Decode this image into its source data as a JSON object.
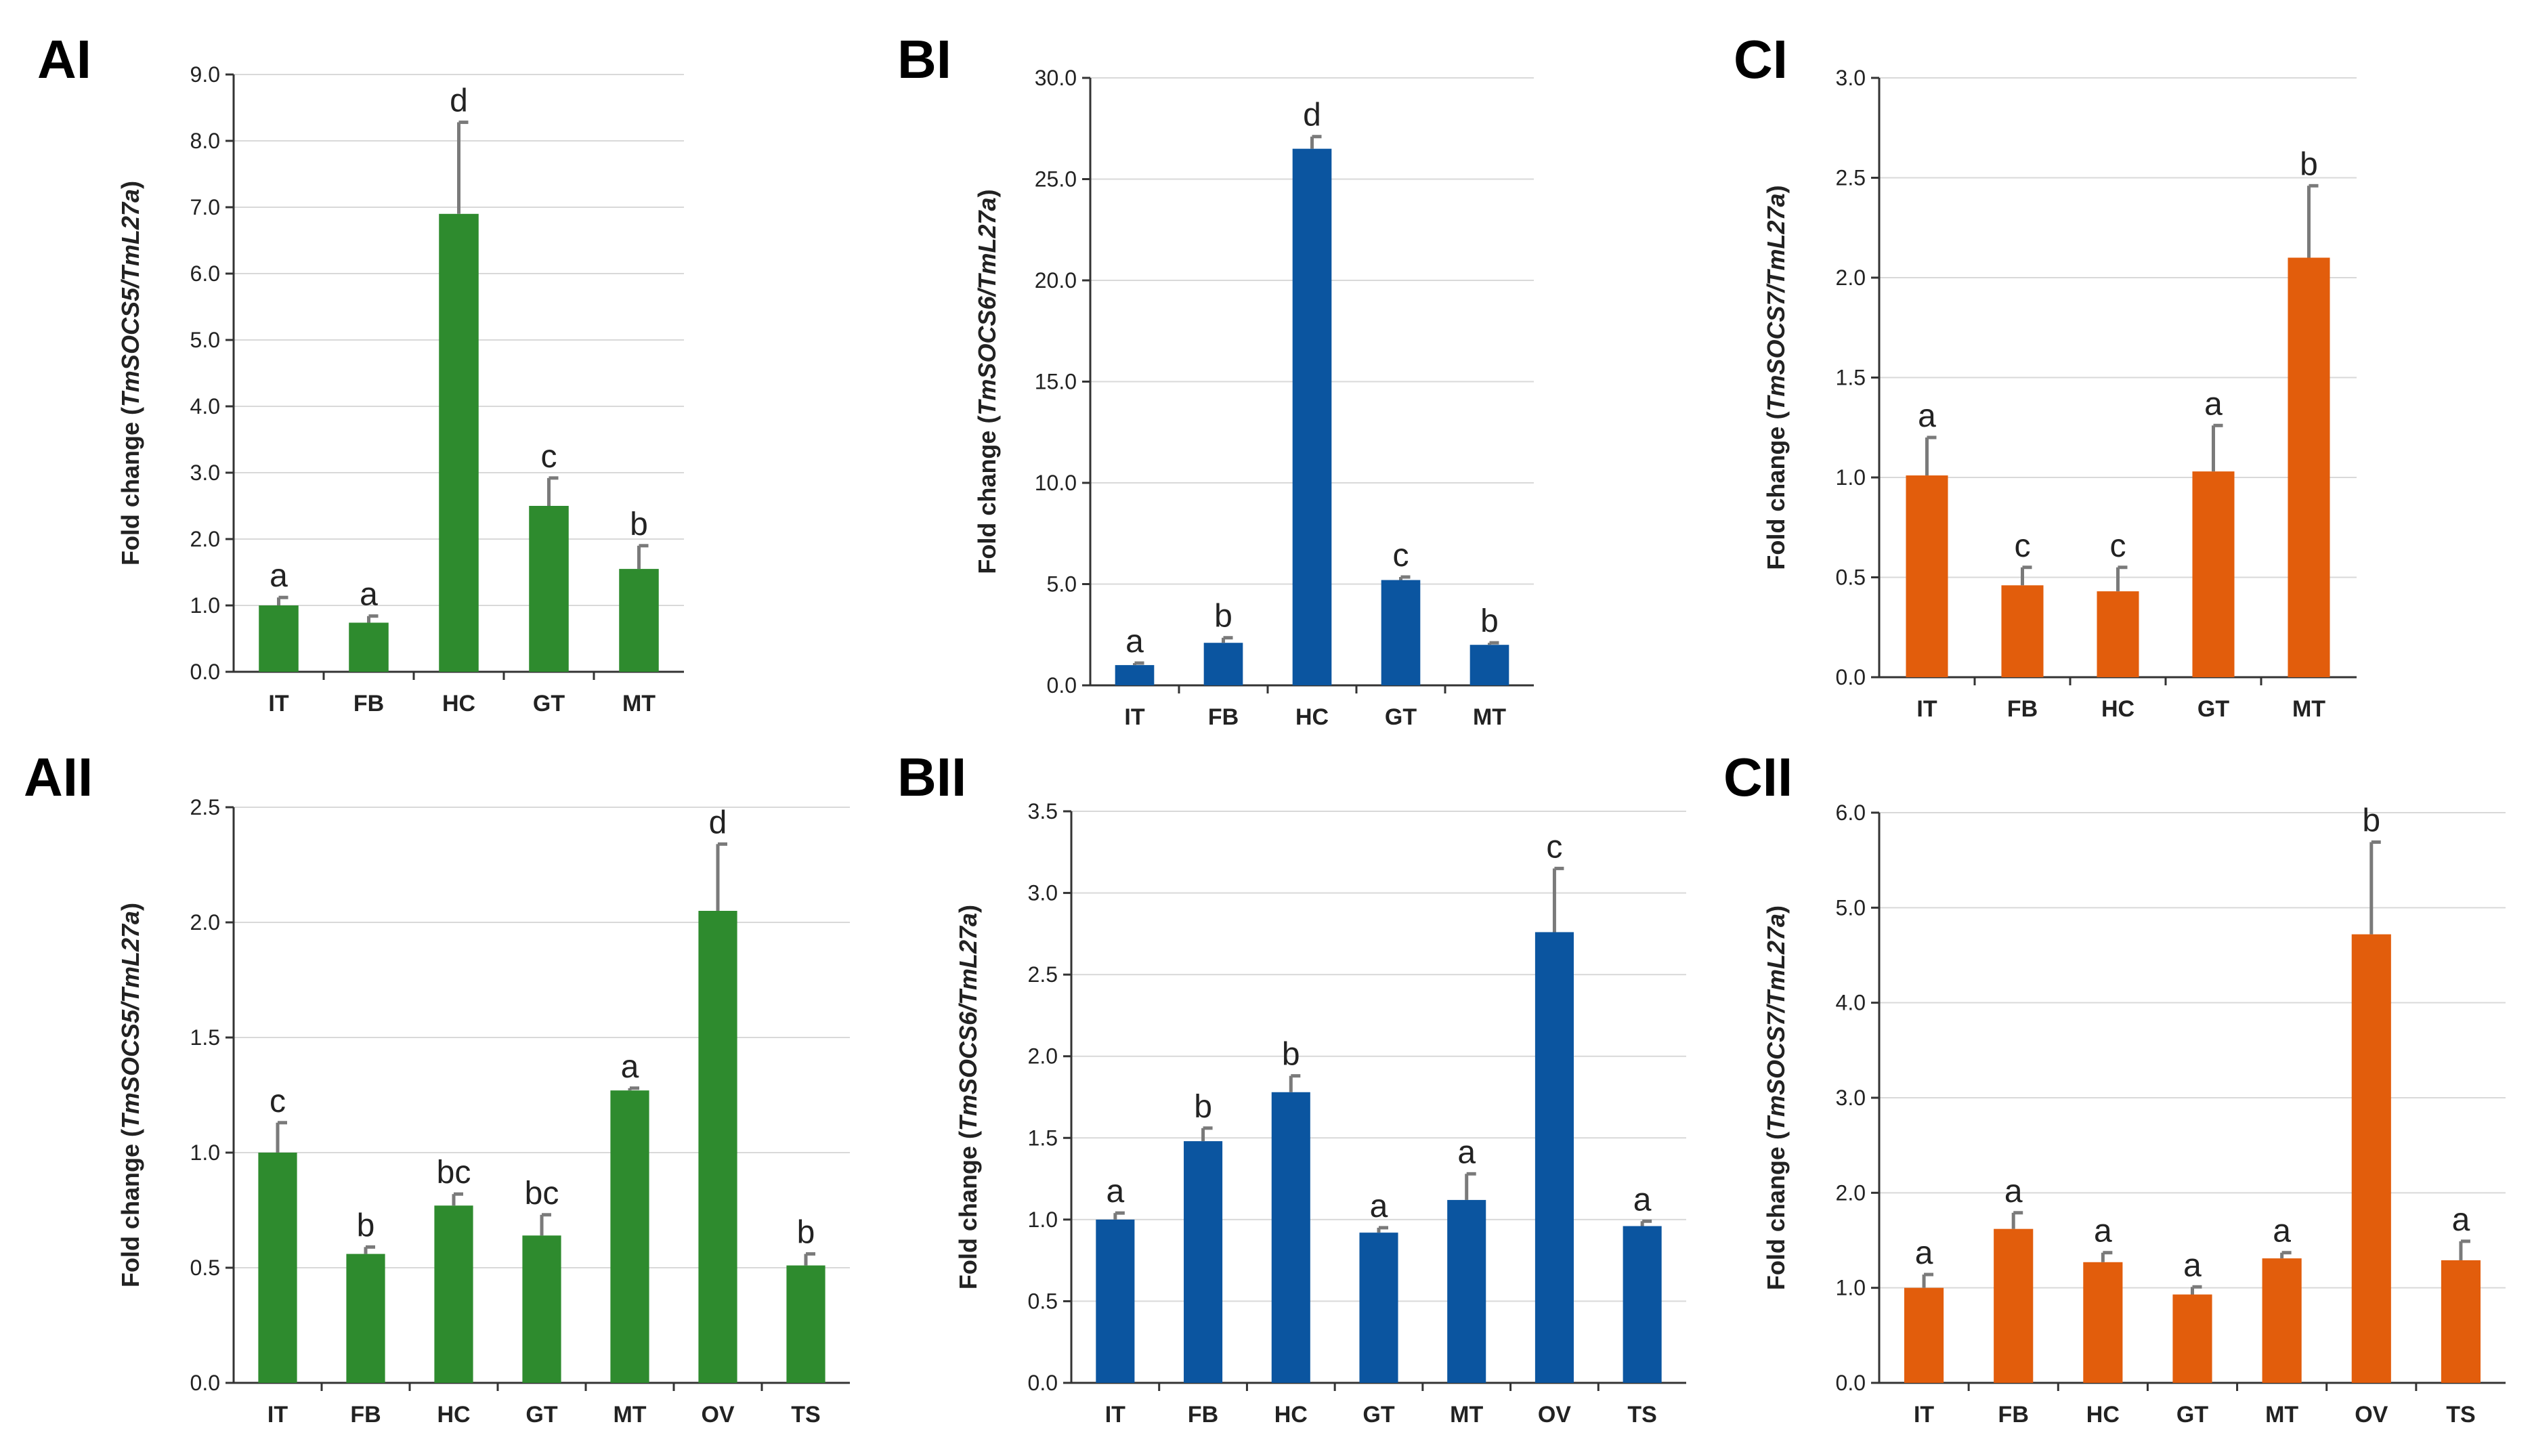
{
  "chart_data": [
    {
      "panel": "AI",
      "type": "bar",
      "color": "#2e8b2e",
      "ylabel_prefix": "Fold change (",
      "ylabel_gene": "TmSOCS5/TmL27a",
      "ylabel_suffix": ")",
      "ylim": [
        0,
        9
      ],
      "yticks": [
        "0.0",
        "1.0",
        "2.0",
        "3.0",
        "4.0",
        "5.0",
        "6.0",
        "7.0",
        "8.0",
        "9.0"
      ],
      "categories": [
        "IT",
        "FB",
        "HC",
        "GT",
        "MT"
      ],
      "values": [
        1.0,
        0.74,
        6.9,
        2.5,
        1.55
      ],
      "errors": [
        0.12,
        0.1,
        1.38,
        0.42,
        0.35
      ],
      "significance": [
        "a",
        "a",
        "d",
        "c",
        "b"
      ]
    },
    {
      "panel": "BI",
      "type": "bar",
      "color": "#0b55a0",
      "ylabel_prefix": "Fold change (",
      "ylabel_gene": "TmSOCS6/TmL27a",
      "ylabel_suffix": ")",
      "ylim": [
        0,
        30
      ],
      "yticks": [
        "0.0",
        "5.0",
        "10.0",
        "15.0",
        "20.0",
        "25.0",
        "30.0"
      ],
      "categories": [
        "IT",
        "FB",
        "HC",
        "GT",
        "MT"
      ],
      "values": [
        1.0,
        2.1,
        26.5,
        5.2,
        2.0
      ],
      "errors": [
        0.1,
        0.25,
        0.6,
        0.15,
        0.1
      ],
      "significance": [
        "a",
        "b",
        "d",
        "c",
        "b"
      ]
    },
    {
      "panel": "CI",
      "type": "bar",
      "color": "#e25d0c",
      "ylabel_prefix": "Fold change (",
      "ylabel_gene": "TmSOCS7/TmL27a",
      "ylabel_suffix": ")",
      "ylim": [
        0,
        3
      ],
      "yticks": [
        "0.0",
        "0.5",
        "1.0",
        "1.5",
        "2.0",
        "2.5",
        "3.0"
      ],
      "categories": [
        "IT",
        "FB",
        "HC",
        "GT",
        "MT"
      ],
      "values": [
        1.01,
        0.46,
        0.43,
        1.03,
        2.1
      ],
      "errors": [
        0.19,
        0.09,
        0.12,
        0.23,
        0.36
      ],
      "significance": [
        "a",
        "c",
        "c",
        "a",
        "b"
      ]
    },
    {
      "panel": "AII",
      "type": "bar",
      "color": "#2e8b2e",
      "ylabel_prefix": "Fold change (",
      "ylabel_gene": "TmSOCS5/TmL27a",
      "ylabel_suffix": ")",
      "ylim": [
        0,
        2.5
      ],
      "yticks": [
        "0.0",
        "0.5",
        "1.0",
        "1.5",
        "2.0",
        "2.5"
      ],
      "categories": [
        "IT",
        "FB",
        "HC",
        "GT",
        "MT",
        "OV",
        "TS"
      ],
      "values": [
        1.0,
        0.56,
        0.77,
        0.64,
        1.27,
        2.05,
        0.51
      ],
      "errors": [
        0.13,
        0.03,
        0.05,
        0.09,
        0.01,
        0.29,
        0.05
      ],
      "significance": [
        "c",
        "b",
        "bc",
        "bc",
        "a",
        "d",
        "b"
      ]
    },
    {
      "panel": "BII",
      "type": "bar",
      "color": "#0b55a0",
      "ylabel_prefix": "Fold change (",
      "ylabel_gene": "TmSOCS6/TmL27a",
      "ylabel_suffix": ")",
      "ylim": [
        0,
        3.5
      ],
      "yticks": [
        "0.0",
        "0.5",
        "1.0",
        "1.5",
        "2.0",
        "2.5",
        "3.0",
        "3.5"
      ],
      "categories": [
        "IT",
        "FB",
        "HC",
        "GT",
        "MT",
        "OV",
        "TS"
      ],
      "values": [
        1.0,
        1.48,
        1.78,
        0.92,
        1.12,
        2.76,
        0.96
      ],
      "errors": [
        0.04,
        0.08,
        0.1,
        0.03,
        0.16,
        0.39,
        0.03
      ],
      "significance": [
        "a",
        "b",
        "b",
        "a",
        "a",
        "c",
        "a"
      ]
    },
    {
      "panel": "CII",
      "type": "bar",
      "color": "#e25d0c",
      "ylabel_prefix": "Fold change (",
      "ylabel_gene": "TmSOCS7/TmL27a",
      "ylabel_suffix": ")",
      "ylim": [
        0,
        6
      ],
      "yticks": [
        "0.0",
        "1.0",
        "2.0",
        "3.0",
        "4.0",
        "5.0",
        "6.0"
      ],
      "categories": [
        "IT",
        "FB",
        "HC",
        "GT",
        "MT",
        "OV",
        "TS"
      ],
      "values": [
        1.0,
        1.62,
        1.27,
        0.93,
        1.31,
        4.72,
        1.29
      ],
      "errors": [
        0.14,
        0.17,
        0.1,
        0.08,
        0.06,
        0.97,
        0.2
      ],
      "significance": [
        "a",
        "a",
        "a",
        "a",
        "a",
        "b",
        "a"
      ]
    }
  ],
  "style": {
    "axis_color": "#333333",
    "grid_color": "#d9d9d9",
    "error_color": "#7a7a7a"
  }
}
